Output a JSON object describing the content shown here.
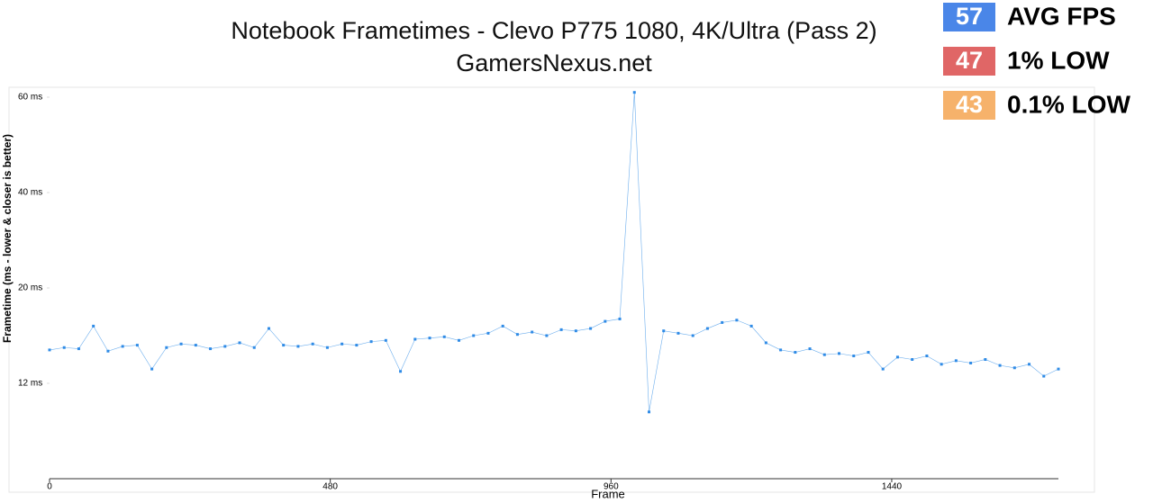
{
  "chart_data": {
    "type": "scatter",
    "title": "Notebook Frametimes - Clevo P775 1080, 4K/Ultra (Pass 2)",
    "subtitle": "GamersNexus.net",
    "x_label": "Frame",
    "y_label": "Frametime (ms - lower & closer is better)",
    "stats": [
      {
        "value": 57,
        "label": "AVG FPS",
        "color": "#4a86e8"
      },
      {
        "value": 47,
        "label": "1% LOW",
        "color": "#e06666"
      },
      {
        "value": 43,
        "label": "0.1% LOW",
        "color": "#f6b26b"
      }
    ],
    "xlim": [
      0,
      1725
    ],
    "xticks": [
      0,
      480,
      960,
      1440
    ],
    "ylim": [
      4,
      62
    ],
    "yticks": [
      {
        "value": 12,
        "label": "12 ms"
      },
      {
        "value": 20,
        "label": "20 ms"
      },
      {
        "value": 40,
        "label": "40 ms"
      },
      {
        "value": 60,
        "label": "60 ms"
      }
    ],
    "series": [
      {
        "name": "Frametime",
        "color": "#2f8be6",
        "x": [
          0,
          25,
          50,
          75,
          100,
          125,
          150,
          175,
          200,
          225,
          250,
          275,
          300,
          325,
          350,
          375,
          400,
          425,
          450,
          475,
          500,
          525,
          550,
          575,
          600,
          625,
          650,
          675,
          700,
          725,
          750,
          775,
          800,
          825,
          850,
          875,
          900,
          925,
          950,
          975,
          1000,
          1025,
          1050,
          1075,
          1100,
          1125,
          1150,
          1175,
          1200,
          1225,
          1250,
          1275,
          1300,
          1325,
          1350,
          1375,
          1400,
          1425,
          1450,
          1475,
          1500,
          1525,
          1550,
          1575,
          1600,
          1625,
          1650,
          1675,
          1700,
          1725
        ],
        "values": [
          14.8,
          15.0,
          14.9,
          16.8,
          14.7,
          15.1,
          15.2,
          13.2,
          15.0,
          15.3,
          15.2,
          14.9,
          15.1,
          15.4,
          15.0,
          16.6,
          15.2,
          15.1,
          15.3,
          15.0,
          15.3,
          15.2,
          15.5,
          15.6,
          13.0,
          15.7,
          15.8,
          15.9,
          15.6,
          16.0,
          16.2,
          16.8,
          16.1,
          16.3,
          16.0,
          16.5,
          16.4,
          16.6,
          17.2,
          17.4,
          61.0,
          9.6,
          16.4,
          16.2,
          16.0,
          16.6,
          17.1,
          17.3,
          16.8,
          15.4,
          14.8,
          14.6,
          14.9,
          14.4,
          14.5,
          14.3,
          14.6,
          13.2,
          14.2,
          14.0,
          14.3,
          13.6,
          13.9,
          13.7,
          14.0,
          13.5,
          13.3,
          13.6,
          12.6,
          13.2
        ]
      }
    ]
  }
}
